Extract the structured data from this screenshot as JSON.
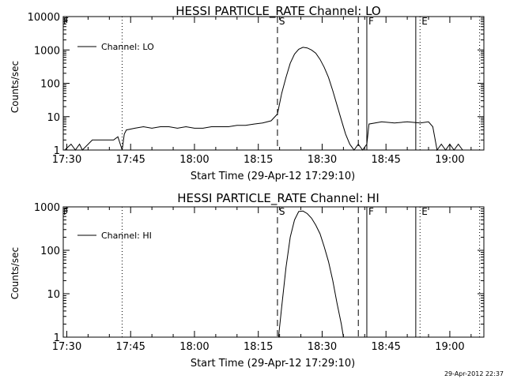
{
  "footer_timestamp": "29-Apr-2012 22:37",
  "chart_data": [
    {
      "type": "line",
      "title": "HESSI PARTICLE_RATE Channel: LO",
      "xlabel": "Start Time (29-Apr-12 17:29:10)",
      "ylabel": "Counts/sec",
      "y_scale": "log",
      "xlim": [
        "17:29:10",
        "19:08:00"
      ],
      "ylim": [
        1,
        10000
      ],
      "x_ticks": [
        "17:30",
        "17:45",
        "18:00",
        "18:15",
        "18:30",
        "18:45",
        "19:00"
      ],
      "y_ticks": [
        "1",
        "10",
        "100",
        "1000",
        "10000"
      ],
      "legend": {
        "position": "top-left",
        "entries": [
          "Channel: LO"
        ]
      },
      "markers": [
        {
          "time": "17:43:00",
          "style": "dotted",
          "label": ""
        },
        {
          "time": "18:19:30",
          "style": "dashed",
          "label": "S"
        },
        {
          "time": "18:38:30",
          "style": "dashed",
          "label": ""
        },
        {
          "time": "18:40:30",
          "style": "solid",
          "label": "F"
        },
        {
          "time": "18:52:00",
          "style": "solid",
          "label": ""
        },
        {
          "time": "18:53:00",
          "style": "dotted",
          "label": "E"
        },
        {
          "time": "19:07:00",
          "style": "dotted",
          "label": ""
        }
      ],
      "corner_label": "F",
      "series": [
        {
          "name": "Channel: LO",
          "x": [
            "17:29:30",
            "17:31:00",
            "17:32:00",
            "17:33:00",
            "17:33:40",
            "17:36:00",
            "17:39:00",
            "17:41:00",
            "17:42:00",
            "17:43:00",
            "17:43:30",
            "17:44:00",
            "17:46:00",
            "17:48:00",
            "17:50:00",
            "17:52:00",
            "17:54:00",
            "17:56:00",
            "17:58:00",
            "18:00:00",
            "18:02:00",
            "18:04:00",
            "18:06:00",
            "18:08:00",
            "18:10:00",
            "18:12:00",
            "18:14:00",
            "18:16:00",
            "18:18:00",
            "18:19:30",
            "18:20:30",
            "18:21:30",
            "18:22:30",
            "18:23:30",
            "18:24:30",
            "18:25:30",
            "18:26:30",
            "18:27:30",
            "18:28:30",
            "18:29:30",
            "18:30:30",
            "18:31:30",
            "18:32:30",
            "18:33:30",
            "18:34:30",
            "18:35:30",
            "18:36:30",
            "18:37:30",
            "18:38:30",
            "18:39:30",
            "18:40:30",
            "18:41:00",
            "18:44:00",
            "18:47:00",
            "18:50:00",
            "18:53:00",
            "18:55:00",
            "18:56:00",
            "18:57:00",
            "18:58:00",
            "18:59:00",
            "19:00:00",
            "19:01:00",
            "19:02:00",
            "19:03:00"
          ],
          "values": [
            1,
            1.5,
            1,
            1.5,
            1,
            2,
            2,
            2,
            2.5,
            1,
            3,
            4,
            4.5,
            5,
            4.5,
            5,
            5,
            4.5,
            5,
            4.5,
            4.5,
            5,
            5,
            5,
            5.5,
            5.5,
            6,
            6.5,
            7.5,
            12,
            50,
            150,
            400,
            750,
            1050,
            1200,
            1150,
            1000,
            800,
            520,
            300,
            150,
            60,
            22,
            8,
            3,
            1.5,
            1,
            1.5,
            1,
            1.5,
            6,
            7,
            6.5,
            7,
            6.5,
            7,
            5,
            1,
            1.5,
            1,
            1.5,
            1,
            1.5,
            1
          ]
        }
      ]
    },
    {
      "type": "line",
      "title": "HESSI PARTICLE_RATE Channel: HI",
      "xlabel": "Start Time (29-Apr-12 17:29:10)",
      "ylabel": "Counts/sec",
      "y_scale": "log",
      "xlim": [
        "17:29:10",
        "19:08:00"
      ],
      "ylim": [
        1,
        1000
      ],
      "x_ticks": [
        "17:30",
        "17:45",
        "18:00",
        "18:15",
        "18:30",
        "18:45",
        "19:00"
      ],
      "y_ticks": [
        "1",
        "10",
        "100",
        "1000"
      ],
      "legend": {
        "position": "top-left",
        "entries": [
          "Channel: HI"
        ]
      },
      "markers": [
        {
          "time": "17:43:00",
          "style": "dotted",
          "label": ""
        },
        {
          "time": "18:19:30",
          "style": "dashed",
          "label": "S"
        },
        {
          "time": "18:38:30",
          "style": "dashed",
          "label": ""
        },
        {
          "time": "18:40:30",
          "style": "solid",
          "label": "F"
        },
        {
          "time": "18:52:00",
          "style": "solid",
          "label": ""
        },
        {
          "time": "18:53:00",
          "style": "dotted",
          "label": "E"
        },
        {
          "time": "19:07:00",
          "style": "dotted",
          "label": ""
        }
      ],
      "corner_label": "F",
      "series": [
        {
          "name": "Channel: HI",
          "x": [
            "18:19:45",
            "18:20:30",
            "18:21:30",
            "18:22:30",
            "18:23:30",
            "18:24:30",
            "18:25:30",
            "18:26:30",
            "18:27:30",
            "18:28:30",
            "18:29:30",
            "18:30:30",
            "18:31:30",
            "18:32:30",
            "18:33:30",
            "18:34:30",
            "18:35:00"
          ],
          "values": [
            1,
            5,
            40,
            200,
            500,
            780,
            800,
            700,
            550,
            380,
            240,
            120,
            55,
            20,
            6,
            2,
            1
          ]
        }
      ]
    }
  ]
}
